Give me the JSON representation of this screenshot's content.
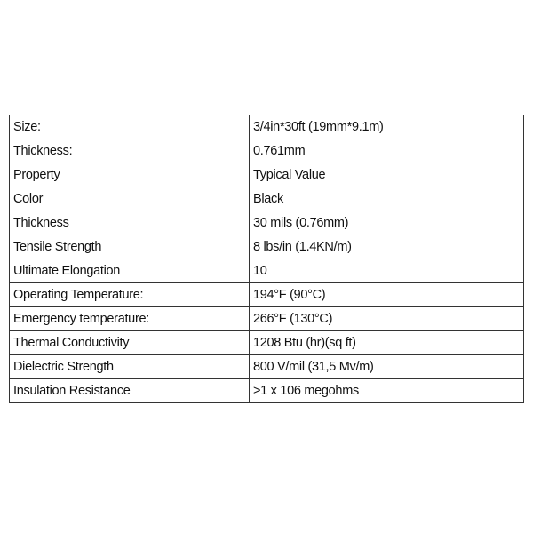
{
  "table": {
    "rows": [
      {
        "property": "Size:",
        "value": "3/4in*30ft (19mm*9.1m)"
      },
      {
        "property": "Thickness:",
        "value": "0.761mm"
      },
      {
        "property": "Property",
        "value": "Typical Value"
      },
      {
        "property": "Color",
        "value": "Black"
      },
      {
        "property": "Thickness",
        "value": "30 mils (0.76mm)"
      },
      {
        "property": "Tensile Strength",
        "value": "8 lbs/in (1.4KN/m)"
      },
      {
        "property": "Ultimate Elongation",
        "value": "10"
      },
      {
        "property": "Operating Temperature:",
        "value": "194°F (90°C)"
      },
      {
        "property": "Emergency temperature:",
        "value": "266°F (130°C)"
      },
      {
        "property": "Thermal Conductivity",
        "value": "1208 Btu (hr)(sq ft)"
      },
      {
        "property": "Dielectric Strength",
        "value": "800 V/mil (31,5 Mv/m)"
      },
      {
        "property": "Insulation Resistance",
        "value": ">1 x 106 megohms"
      }
    ]
  }
}
